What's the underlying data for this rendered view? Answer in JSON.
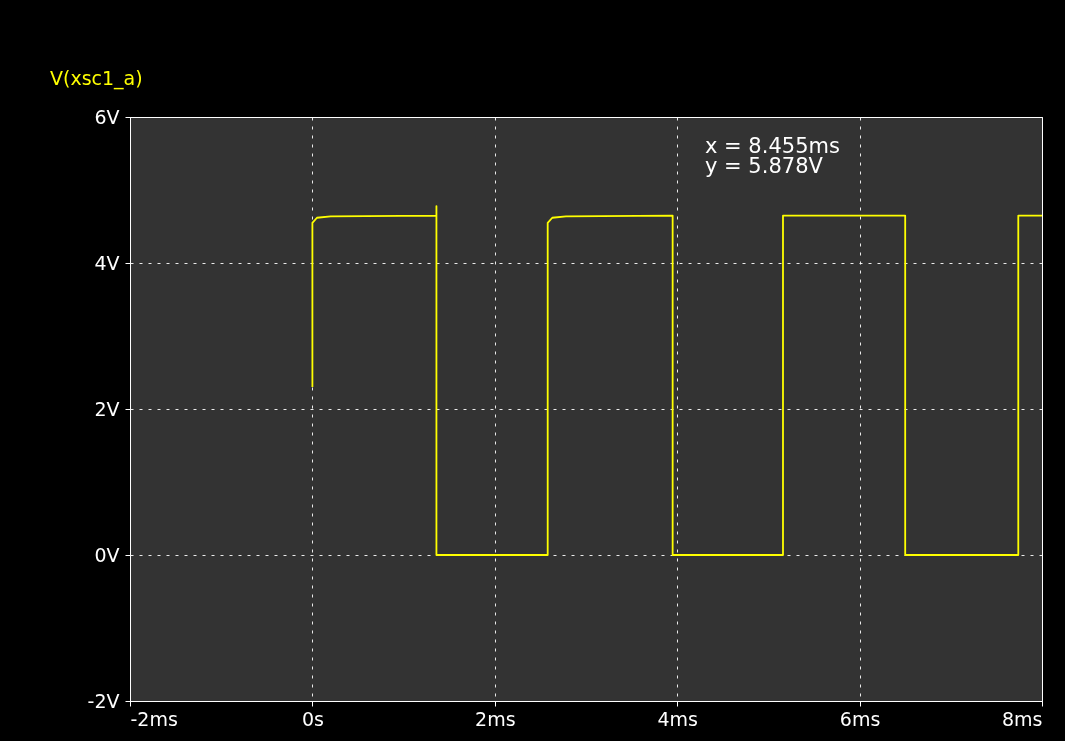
{
  "chart_data": {
    "type": "line",
    "ylabel": "V(xsc1_a)",
    "x": [
      0,
      0,
      0.05,
      0.2,
      1.36,
      1.36,
      1.36,
      2.58,
      2.58,
      2.63,
      2.78,
      3.95,
      3.95,
      5.16,
      5.16,
      6.5,
      6.5,
      7.74,
      7.74,
      8.0
    ],
    "series": [
      {
        "color": "#ffff00",
        "values": [
          2.3,
          4.55,
          4.62,
          4.64,
          4.65,
          4.78,
          0,
          0,
          4.55,
          4.62,
          4.64,
          4.65,
          0,
          0,
          4.65,
          4.65,
          0,
          0,
          4.65,
          4.65
        ]
      }
    ],
    "xlim": [
      -2,
      8
    ],
    "xticks": [
      {
        "value": -2,
        "label": "-2ms"
      },
      {
        "value": 0,
        "label": "0s"
      },
      {
        "value": 2,
        "label": "2ms"
      },
      {
        "value": 4,
        "label": "4ms"
      },
      {
        "value": 6,
        "label": "6ms"
      },
      {
        "value": 8,
        "label": "8ms"
      }
    ],
    "ylim": [
      -2,
      6
    ],
    "yticks": [
      {
        "value": -2,
        "label": "-2V"
      },
      {
        "value": 0,
        "label": "0V"
      },
      {
        "value": 2,
        "label": "2V"
      },
      {
        "value": 4,
        "label": "4V"
      },
      {
        "value": 6,
        "label": "6V"
      }
    ],
    "annotations": [
      "x = 8.455ms",
      "y = 5.878V"
    ],
    "grid": true,
    "line_style": "solid",
    "marker": "none"
  }
}
